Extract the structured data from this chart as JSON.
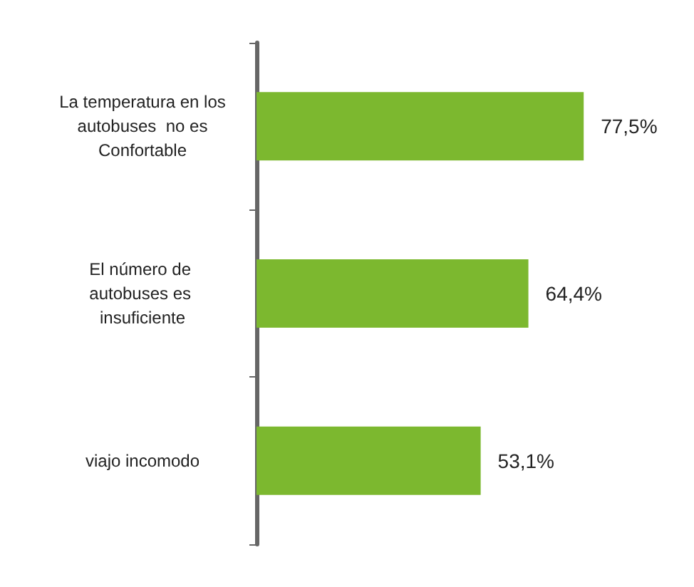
{
  "chart_data": {
    "type": "bar",
    "orientation": "horizontal",
    "categories": [
      "La temperatura en los autobuses  no es Confortable",
      "El número de autobuses es insuficiente",
      "viajo incomodo"
    ],
    "values": [
      77.5,
      64.4,
      53.1
    ],
    "value_labels": [
      "77,5%",
      "64,4%",
      "53,1%"
    ],
    "color": "#7cb82f"
  }
}
